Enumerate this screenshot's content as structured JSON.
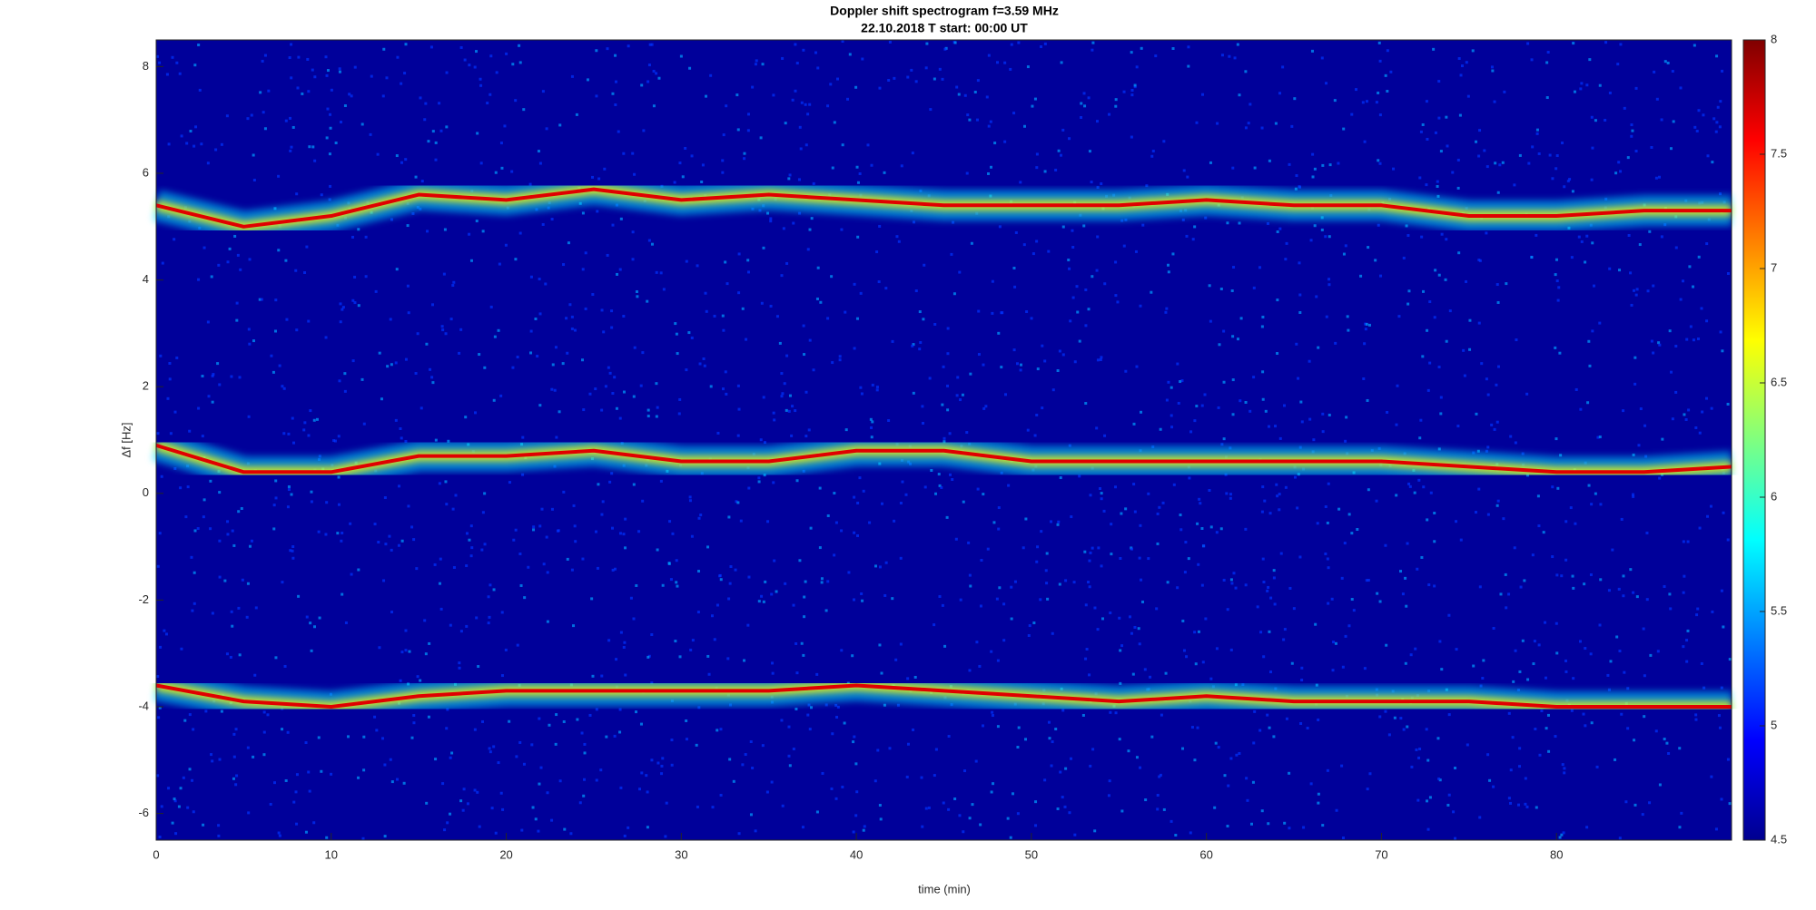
{
  "chart_data": {
    "type": "spectrogram",
    "title": "Doppler shift spectrogram f=3.59 MHz",
    "subtitle": "22.10.2018   T start: 00:00 UT",
    "xlabel": "time (min)",
    "ylabel": "Δf [Hz]",
    "background": "#00009a",
    "x": [
      0,
      5,
      10,
      15,
      20,
      25,
      30,
      35,
      40,
      45,
      50,
      55,
      60,
      65,
      70,
      75,
      80,
      85,
      90
    ],
    "series": [
      {
        "color": "#e00000",
        "values": [
          5.4,
          5.0,
          5.2,
          5.6,
          5.5,
          5.7,
          5.5,
          5.6,
          5.5,
          5.4,
          5.4,
          5.4,
          5.5,
          5.4,
          5.4,
          5.2,
          5.2,
          5.3,
          5.3
        ]
      },
      {
        "color": "#e00000",
        "values": [
          0.9,
          0.4,
          0.4,
          0.7,
          0.7,
          0.8,
          0.6,
          0.6,
          0.8,
          0.8,
          0.6,
          0.6,
          0.6,
          0.6,
          0.6,
          0.5,
          0.4,
          0.4,
          0.5
        ]
      },
      {
        "color": "#e00000",
        "values": [
          -3.6,
          -3.9,
          -4.0,
          -3.8,
          -3.7,
          -3.7,
          -3.7,
          -3.7,
          -3.6,
          -3.7,
          -3.8,
          -3.9,
          -3.8,
          -3.9,
          -3.9,
          -3.9,
          -4.0,
          -4.0,
          -4.0
        ]
      }
    ],
    "xlim": [
      0,
      90
    ],
    "xticks": [
      0,
      10,
      20,
      30,
      40,
      50,
      60,
      70,
      80
    ],
    "ylim": [
      -6.5,
      8.5
    ],
    "yticks": [
      -6,
      -4,
      -2,
      0,
      2,
      4,
      6,
      8
    ],
    "clim": [
      4.5,
      8
    ],
    "cticks": [
      4.5,
      5,
      5.5,
      6,
      6.5,
      7,
      7.5,
      8
    ]
  }
}
